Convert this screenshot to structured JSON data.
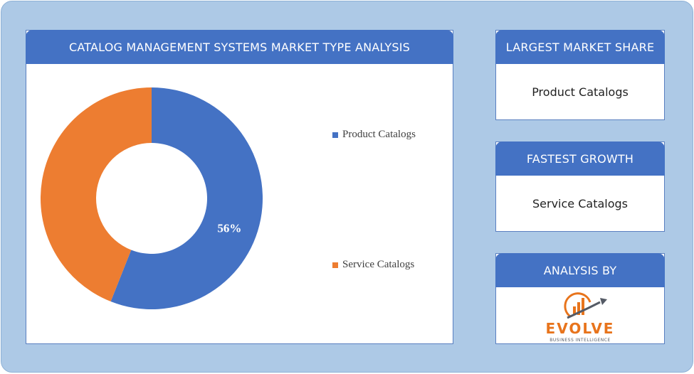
{
  "main_panel": {
    "title": "CATALOG MANAGEMENT SYSTEMS MARKET TYPE ANALYSIS"
  },
  "chart_data": {
    "type": "pie",
    "subtype": "donut",
    "series": [
      {
        "name": "Product Catalogs",
        "value": 56,
        "color": "#4472c4",
        "label": "56%"
      },
      {
        "name": "Service Catalogs",
        "value": 44,
        "color": "#ed7d31",
        "label": ""
      }
    ],
    "legend_position": "right"
  },
  "largest_market_share": {
    "title": "LARGEST MARKET SHARE",
    "value": "Product Catalogs"
  },
  "fastest_growth": {
    "title": "FASTEST GROWTH",
    "value": "Service Catalogs"
  },
  "analysis_by": {
    "title": "ANALYSIS BY",
    "logo": {
      "name": "EVOLVE",
      "tagline": "BUSINESS INTELLIGENCE",
      "colors": {
        "primary": "#e8741c",
        "secondary": "#555b66"
      }
    }
  }
}
